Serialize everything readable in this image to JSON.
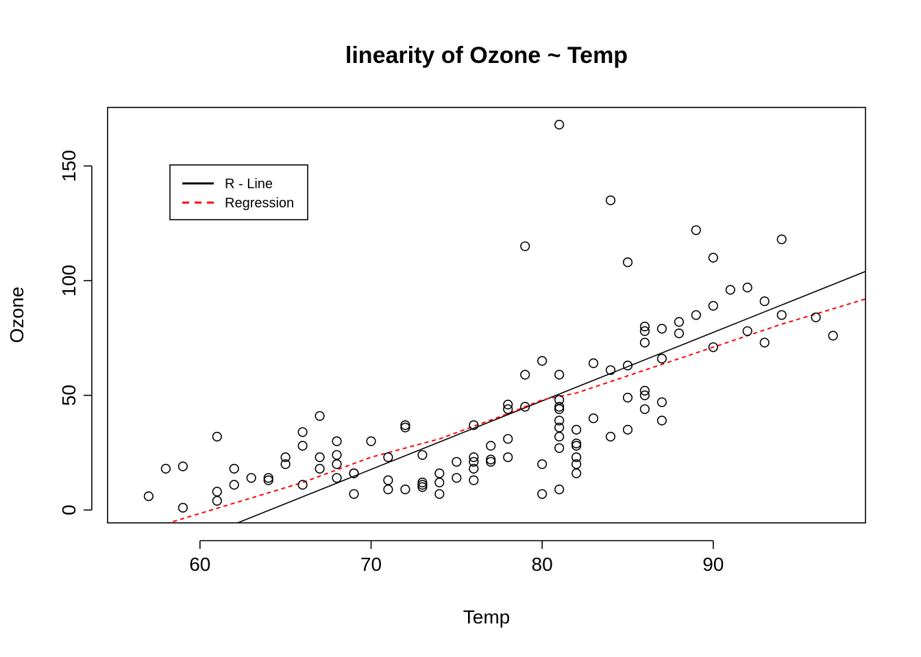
{
  "chart_data": {
    "type": "scatter",
    "title": "linearity of Ozone ~ Temp",
    "xlabel": "Temp",
    "ylabel": "Ozone",
    "xlim": [
      54.6,
      98.9
    ],
    "ylim": [
      -5.6,
      175.5
    ],
    "xticks": [
      60,
      70,
      80,
      90
    ],
    "yticks": [
      0,
      50,
      100,
      150
    ],
    "xtick_labels": [
      "60",
      "70",
      "80",
      "90"
    ],
    "ytick_labels": [
      "0",
      "50",
      "100",
      "150"
    ],
    "grid": false,
    "legend": {
      "position": "top-left",
      "entries": [
        {
          "label": "R - Line",
          "color": "#000000",
          "style": "solid"
        },
        {
          "label": "Regression",
          "color": "#ff0000",
          "style": "dashed"
        }
      ]
    },
    "points": [
      [
        57,
        6
      ],
      [
        58,
        18
      ],
      [
        59,
        19
      ],
      [
        59,
        1
      ],
      [
        61,
        32
      ],
      [
        61,
        8
      ],
      [
        61,
        4
      ],
      [
        62,
        18
      ],
      [
        62,
        11
      ],
      [
        63,
        14
      ],
      [
        64,
        14
      ],
      [
        64,
        13
      ],
      [
        65,
        23
      ],
      [
        65,
        20
      ],
      [
        66,
        34
      ],
      [
        66,
        28
      ],
      [
        66,
        11
      ],
      [
        67,
        41
      ],
      [
        67,
        23
      ],
      [
        67,
        18
      ],
      [
        68,
        30
      ],
      [
        68,
        24
      ],
      [
        68,
        20
      ],
      [
        68,
        14
      ],
      [
        69,
        16
      ],
      [
        69,
        16
      ],
      [
        69,
        7
      ],
      [
        70,
        30
      ],
      [
        71,
        23
      ],
      [
        71,
        13
      ],
      [
        71,
        9
      ],
      [
        72,
        37
      ],
      [
        72,
        36
      ],
      [
        72,
        9
      ],
      [
        73,
        24
      ],
      [
        73,
        12
      ],
      [
        73,
        11
      ],
      [
        73,
        10
      ],
      [
        74,
        16
      ],
      [
        74,
        12
      ],
      [
        74,
        7
      ],
      [
        75,
        21
      ],
      [
        75,
        14
      ],
      [
        76,
        37
      ],
      [
        76,
        23
      ],
      [
        76,
        21
      ],
      [
        76,
        18
      ],
      [
        76,
        13
      ],
      [
        77,
        28
      ],
      [
        77,
        22
      ],
      [
        77,
        21
      ],
      [
        78,
        46
      ],
      [
        78,
        44
      ],
      [
        78,
        31
      ],
      [
        78,
        23
      ],
      [
        79,
        115
      ],
      [
        79,
        59
      ],
      [
        79,
        45
      ],
      [
        80,
        65
      ],
      [
        80,
        20
      ],
      [
        80,
        7
      ],
      [
        81,
        168
      ],
      [
        81,
        59
      ],
      [
        81,
        48
      ],
      [
        81,
        45
      ],
      [
        81,
        44
      ],
      [
        81,
        39
      ],
      [
        81,
        36
      ],
      [
        81,
        32
      ],
      [
        81,
        27
      ],
      [
        81,
        9
      ],
      [
        82,
        35
      ],
      [
        82,
        29
      ],
      [
        82,
        28
      ],
      [
        82,
        23
      ],
      [
        82,
        20
      ],
      [
        82,
        16
      ],
      [
        83,
        64
      ],
      [
        83,
        40
      ],
      [
        84,
        135
      ],
      [
        84,
        61
      ],
      [
        84,
        32
      ],
      [
        85,
        108
      ],
      [
        85,
        63
      ],
      [
        85,
        49
      ],
      [
        85,
        35
      ],
      [
        86,
        80
      ],
      [
        86,
        78
      ],
      [
        86,
        73
      ],
      [
        86,
        52
      ],
      [
        86,
        50
      ],
      [
        86,
        44
      ],
      [
        87,
        79
      ],
      [
        87,
        66
      ],
      [
        87,
        47
      ],
      [
        87,
        39
      ],
      [
        88,
        82
      ],
      [
        88,
        77
      ],
      [
        89,
        122
      ],
      [
        89,
        85
      ],
      [
        90,
        110
      ],
      [
        90,
        89
      ],
      [
        90,
        71
      ],
      [
        91,
        96
      ],
      [
        92,
        97
      ],
      [
        92,
        78
      ],
      [
        93,
        91
      ],
      [
        93,
        73
      ],
      [
        94,
        118
      ],
      [
        94,
        85
      ],
      [
        96,
        84
      ],
      [
        97,
        76
      ]
    ],
    "lines": [
      {
        "name": "R - Line",
        "color": "#000000",
        "style": "solid",
        "x": [
          62.2,
          98.9
        ],
        "y": [
          -5.6,
          104
        ]
      },
      {
        "name": "Regression",
        "color": "#ff0000",
        "style": "dashed",
        "x": [
          58,
          62,
          66,
          70,
          74,
          78,
          80,
          82,
          86,
          90,
          94,
          98.9
        ],
        "y": [
          -6,
          3,
          12,
          23,
          31,
          42,
          48,
          51,
          61,
          71,
          81,
          92
        ]
      }
    ]
  }
}
